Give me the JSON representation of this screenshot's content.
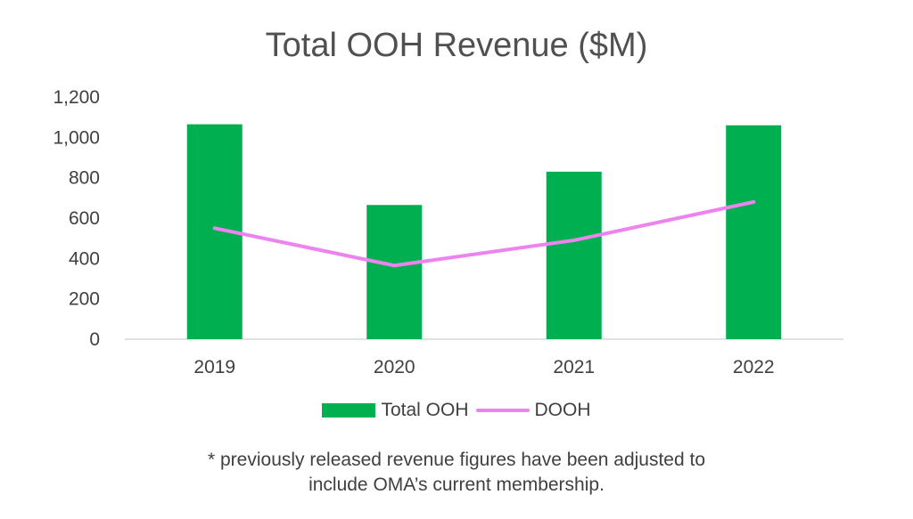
{
  "colors": {
    "bar": "#00b050",
    "line": "#ee82ee",
    "axis": "#d9d9d9",
    "text": "#404040"
  },
  "chart_data": {
    "type": "bar",
    "title": "Total OOH Revenue ($M)",
    "categories": [
      "2019",
      "2020",
      "2021",
      "2022"
    ],
    "series": [
      {
        "name": "Total OOH",
        "kind": "bar",
        "values": [
          1065,
          665,
          830,
          1060
        ]
      },
      {
        "name": "DOOH",
        "kind": "line",
        "values": [
          550,
          365,
          490,
          680
        ]
      }
    ],
    "yticks": [
      "0",
      "200",
      "400",
      "600",
      "800",
      "1,000",
      "1,200"
    ],
    "ylim": [
      0,
      1200
    ],
    "grid": false,
    "legend_position": "bottom"
  },
  "footnote": {
    "line1": "* previously released revenue figures have been adjusted to",
    "line2": "include OMA’s current membership."
  }
}
